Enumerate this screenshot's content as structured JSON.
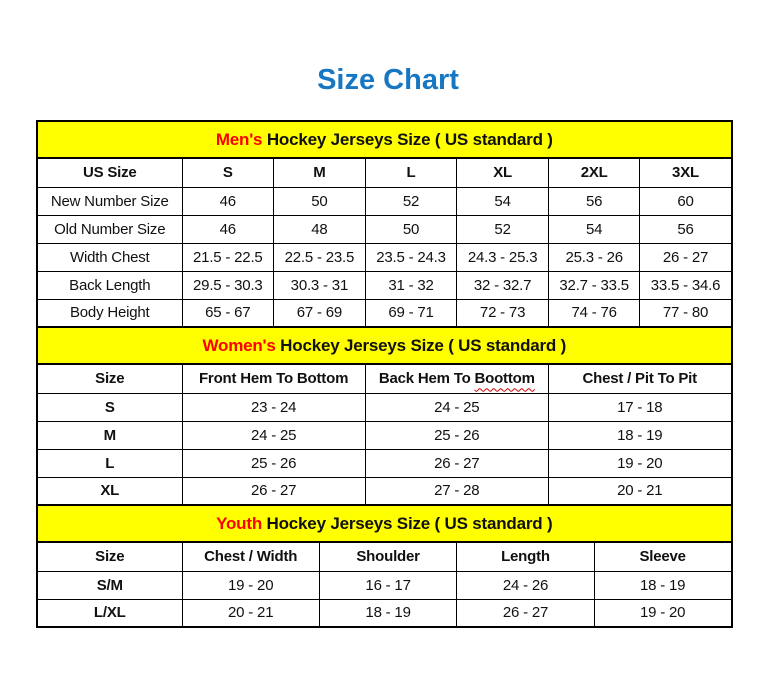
{
  "page_title": "Size Chart",
  "colors": {
    "title_blue": "#1777c2",
    "band_yellow": "#ffff00",
    "accent_red": "#ff0000",
    "border_black": "#000000"
  },
  "tables": [
    {
      "id": "mens",
      "band": {
        "highlight": "Men's",
        "rest": " Hockey Jerseys Size ( US standard )"
      },
      "columns": [
        {
          "text": "US Size"
        },
        {
          "text": "S"
        },
        {
          "text": "M"
        },
        {
          "text": "L"
        },
        {
          "text": "XL"
        },
        {
          "text": "2XL"
        },
        {
          "text": "3XL"
        }
      ],
      "rows": [
        {
          "label": "New Number Size",
          "cells": [
            "46",
            "50",
            "52",
            "54",
            "56",
            "60"
          ]
        },
        {
          "label": "Old Number Size",
          "cells": [
            "46",
            "48",
            "50",
            "52",
            "54",
            "56"
          ]
        },
        {
          "label": "Width Chest",
          "cells": [
            "21.5 - 22.5",
            "22.5 - 23.5",
            "23.5 - 24.3",
            "24.3 - 25.3",
            "25.3 - 26",
            "26 - 27"
          ]
        },
        {
          "label": "Back Length",
          "cells": [
            "29.5 - 30.3",
            "30.3 - 31",
            "31 - 32",
            "32 - 32.7",
            "32.7 - 33.5",
            "33.5 - 34.6"
          ]
        },
        {
          "label": "Body Height",
          "cells": [
            "65 - 67",
            "67 - 69",
            "69 - 71",
            "72 - 73",
            "74 - 76",
            "77 - 80"
          ]
        }
      ]
    },
    {
      "id": "womens",
      "band": {
        "highlight": "Women's",
        "rest": " Hockey Jerseys Size ( US standard )"
      },
      "columns": [
        {
          "text": "Size"
        },
        {
          "text": "Front Hem To Bottom"
        },
        {
          "text": "Back Hem To ",
          "squiggle": "Boottom"
        },
        {
          "text": "Chest / Pit To Pit"
        }
      ],
      "rows": [
        {
          "label": "S",
          "cells": [
            "23 - 24",
            "24 - 25",
            "17 - 18"
          ]
        },
        {
          "label": "M",
          "cells": [
            "24 - 25",
            "25 - 26",
            "18 - 19"
          ]
        },
        {
          "label": "L",
          "cells": [
            "25 - 26",
            "26 - 27",
            "19 - 20"
          ]
        },
        {
          "label": "XL",
          "cells": [
            "26 - 27",
            "27 - 28",
            "20 - 21"
          ]
        }
      ]
    },
    {
      "id": "youth",
      "band": {
        "highlight": "Youth",
        "rest": " Hockey Jerseys Size ( US standard )"
      },
      "columns": [
        {
          "text": "Size"
        },
        {
          "text": "Chest / Width"
        },
        {
          "text": "Shoulder"
        },
        {
          "text": "Length"
        },
        {
          "text": "Sleeve"
        }
      ],
      "rows": [
        {
          "label": "S/M",
          "cells": [
            "19 - 20",
            "16 - 17",
            "24 - 26",
            "18 - 19"
          ]
        },
        {
          "label": "L/XL",
          "cells": [
            "20 - 21",
            "18 - 19",
            "26 - 27",
            "19 - 20"
          ]
        }
      ]
    }
  ]
}
